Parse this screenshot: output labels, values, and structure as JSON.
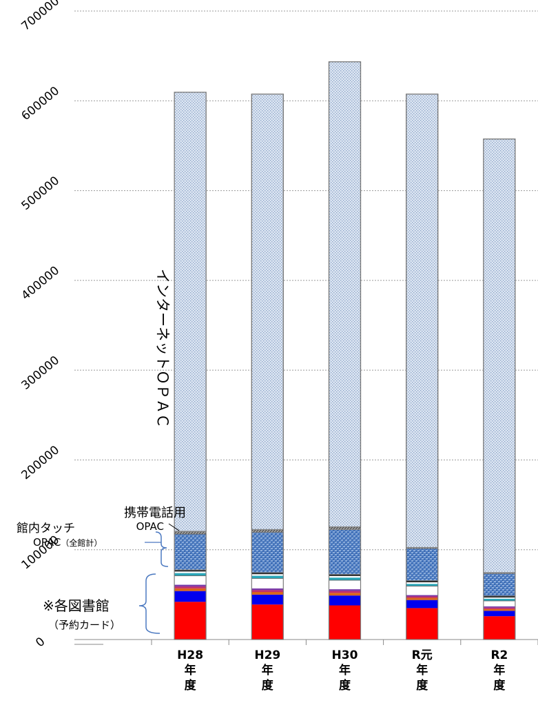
{
  "chart_data": {
    "type": "bar",
    "stacked": true,
    "grid": true,
    "ylim": [
      0,
      700000
    ],
    "yticks": [
      "0",
      "100000",
      "200000",
      "300000",
      "400000",
      "500000",
      "600000",
      "700000"
    ],
    "categories": [
      [
        "H28",
        "年",
        "度"
      ],
      [
        "H29",
        "年",
        "度"
      ],
      [
        "H30",
        "年",
        "度"
      ],
      [
        "R元",
        "年",
        "度"
      ],
      [
        "R2",
        "年",
        "度"
      ]
    ],
    "series": [
      {
        "color": "#ff0000",
        "pattern": "solid",
        "values": [
          42000,
          39000,
          38000,
          35000,
          26000
        ]
      },
      {
        "color": "#0000ee",
        "pattern": "solid",
        "values": [
          12000,
          11000,
          11000,
          9000,
          6000
        ]
      },
      {
        "color": "#d9661a",
        "pattern": "solid",
        "values": [
          3000,
          3000,
          3000,
          2500,
          2000
        ]
      },
      {
        "color": "#c0286a",
        "pattern": "solid",
        "values": [
          2000,
          2000,
          2000,
          1500,
          1500
        ]
      },
      {
        "color": "#7a3aa8",
        "pattern": "solid",
        "values": [
          2000,
          2000,
          2000,
          1500,
          1500
        ]
      },
      {
        "color": "#ffffff",
        "pattern": "solid",
        "values": [
          10000,
          11000,
          10000,
          10000,
          6000
        ]
      },
      {
        "color": "#2aa6b8",
        "pattern": "solid",
        "values": [
          3000,
          3000,
          3000,
          2500,
          2500
        ]
      },
      {
        "color": "#ffffff",
        "pattern": "solid",
        "values": [
          2000,
          2000,
          2000,
          2000,
          1500
        ]
      },
      {
        "color": "#000000",
        "pattern": "solid",
        "values": [
          1500,
          1500,
          1500,
          1500,
          1500
        ]
      },
      {
        "color": "#4d7cc2",
        "pattern": "weave",
        "values": [
          40000,
          45000,
          50000,
          36000,
          25000
        ]
      },
      {
        "color": "#808080",
        "pattern": "hatch",
        "values": [
          3000,
          3000,
          3000,
          1000,
          1000
        ]
      },
      {
        "color": "#a8bede",
        "pattern": "dots",
        "values": [
          489000,
          485000,
          518000,
          505000,
          483000
        ]
      }
    ],
    "annotations": {
      "internet_opac": "インターネットＯＰＡＣ",
      "mobile_line1": "携帯電話用",
      "mobile_line2": "OPAC",
      "touch_line1": "館内タッチ",
      "touch_line2a": "OPAC",
      "touch_line2b": "（全館計）",
      "library_line1": "※各図書館",
      "library_line2": "（予約カード）"
    }
  }
}
